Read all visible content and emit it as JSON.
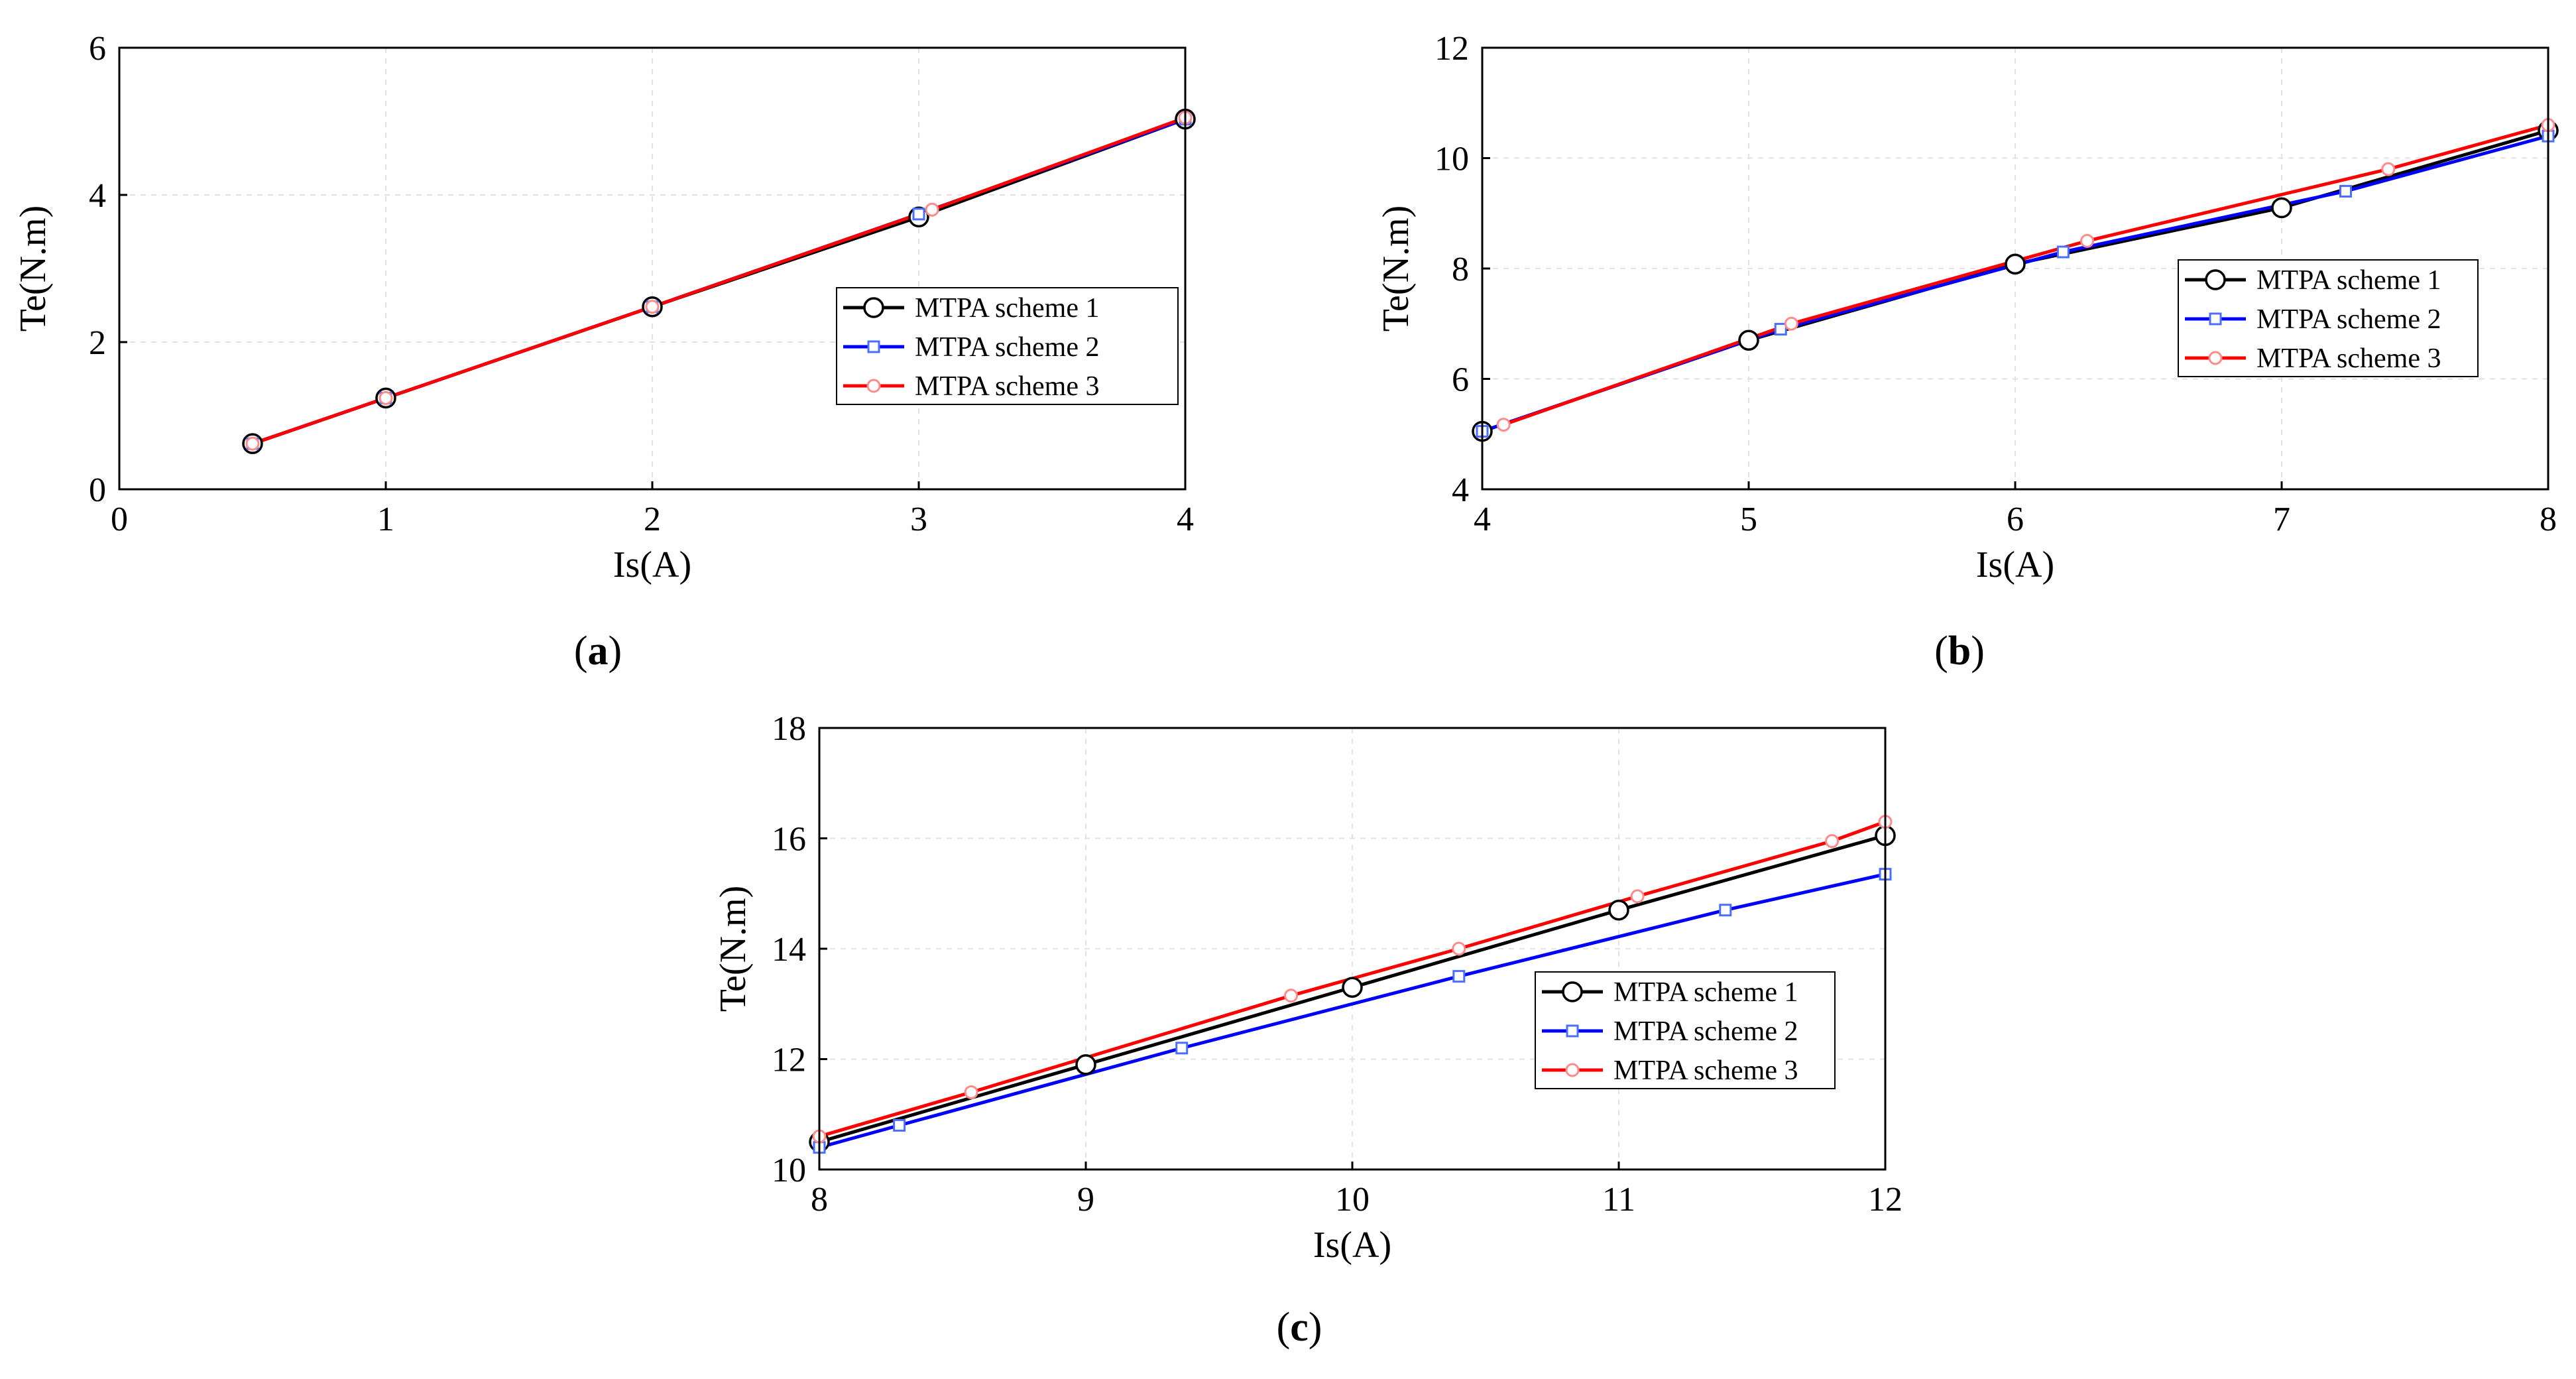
{
  "colors": {
    "series": [
      "#000000",
      "#0000ff",
      "#ff0000"
    ],
    "marker_fill": [
      "#ffffff",
      "#ffffff",
      "#ffffff"
    ],
    "marker_edge": [
      "#000000",
      "#4a6fff",
      "#ff8a8a"
    ]
  },
  "chart_data": [
    {
      "type": "line",
      "panel_label": "a",
      "xlabel": "Is(A)",
      "ylabel": "Te(N.m)",
      "xlim": [
        0,
        4
      ],
      "ylim": [
        0,
        6
      ],
      "xticks": [
        0,
        1,
        2,
        3,
        4
      ],
      "yticks": [
        0,
        2,
        4,
        6
      ],
      "grid": true,
      "legend_position": "center-right",
      "series": [
        {
          "name": "MTPA scheme 1",
          "marker": "circle",
          "x": [
            0.5,
            1,
            2,
            3,
            4
          ],
          "y": [
            0.62,
            1.24,
            2.48,
            3.7,
            5.03
          ]
        },
        {
          "name": "MTPA scheme 2",
          "marker": "square",
          "x": [
            0.5,
            1,
            2,
            3,
            4
          ],
          "y": [
            0.62,
            1.24,
            2.48,
            3.74,
            5.03
          ]
        },
        {
          "name": "MTPA scheme 3",
          "marker": "small-circle",
          "x": [
            0.5,
            1,
            2,
            3.05,
            4
          ],
          "y": [
            0.62,
            1.24,
            2.48,
            3.8,
            5.05
          ]
        }
      ]
    },
    {
      "type": "line",
      "panel_label": "b",
      "xlabel": "Is(A)",
      "ylabel": "Te(N.m)",
      "xlim": [
        4,
        8
      ],
      "ylim": [
        4,
        12
      ],
      "xticks": [
        4,
        5,
        6,
        7,
        8
      ],
      "yticks": [
        4,
        6,
        8,
        10,
        12
      ],
      "grid": true,
      "legend_position": "center-right",
      "series": [
        {
          "name": "MTPA scheme 1",
          "marker": "circle",
          "x": [
            4,
            5,
            6,
            7,
            8
          ],
          "y": [
            5.05,
            6.7,
            8.08,
            9.1,
            10.5
          ]
        },
        {
          "name": "MTPA scheme 2",
          "marker": "square",
          "x": [
            4,
            5.12,
            6.18,
            7.24,
            8
          ],
          "y": [
            5.05,
            6.9,
            8.3,
            9.4,
            10.4
          ]
        },
        {
          "name": "MTPA scheme 3",
          "marker": "small-circle",
          "x": [
            4.08,
            5.16,
            6.27,
            7.4,
            8
          ],
          "y": [
            5.17,
            7.0,
            8.5,
            9.8,
            10.6
          ]
        }
      ]
    },
    {
      "type": "line",
      "panel_label": "c",
      "xlabel": "Is(A)",
      "ylabel": "Te(N.m)",
      "xlim": [
        8,
        12
      ],
      "ylim": [
        10,
        18
      ],
      "xticks": [
        8,
        9,
        10,
        11,
        12
      ],
      "yticks": [
        10,
        12,
        14,
        16,
        18
      ],
      "grid": true,
      "legend_position": "center-right",
      "series": [
        {
          "name": "MTPA scheme 1",
          "marker": "circle",
          "x": [
            8,
            9,
            10,
            11,
            12
          ],
          "y": [
            10.5,
            11.9,
            13.3,
            14.7,
            16.05
          ]
        },
        {
          "name": "MTPA scheme 2",
          "marker": "square",
          "x": [
            8,
            8.3,
            9.36,
            10.4,
            11.4,
            12
          ],
          "y": [
            10.4,
            10.8,
            12.2,
            13.5,
            14.7,
            15.35
          ]
        },
        {
          "name": "MTPA scheme 3",
          "marker": "small-circle",
          "x": [
            8,
            8.57,
            9.77,
            10.4,
            11.07,
            11.8,
            12
          ],
          "y": [
            10.6,
            11.4,
            13.15,
            14.0,
            14.95,
            15.95,
            16.3
          ]
        }
      ]
    }
  ]
}
